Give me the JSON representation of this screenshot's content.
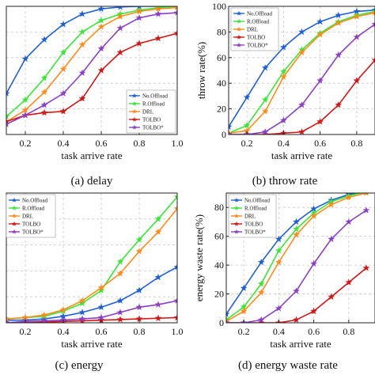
{
  "chart_data": [
    {
      "id": "a",
      "type": "line",
      "caption": "(a) delay",
      "xlabel": "task arrive rate",
      "ylabel": "",
      "xlim": [
        0.1,
        1.0
      ],
      "ylim": [
        0,
        100
      ],
      "xticks": [
        "0.2",
        "0.4",
        "0.6",
        "0.8",
        "1.0"
      ],
      "yticks": [],
      "grid": true,
      "legend_position": "bottom-right",
      "x": [
        0.1,
        0.2,
        0.3,
        0.4,
        0.5,
        0.6,
        0.7,
        0.8,
        0.9,
        1.0
      ],
      "series": [
        {
          "name": "No.Offload",
          "color": "#1f5fd6",
          "marker": "star",
          "values": [
            32,
            59,
            74,
            86,
            94,
            98,
            99.5,
            100,
            100,
            100
          ]
        },
        {
          "name": "R.Offload",
          "color": "#39e636",
          "marker": "star",
          "values": [
            14,
            27,
            44,
            64,
            80,
            89,
            94,
            97,
            99,
            100
          ]
        },
        {
          "name": "DRL",
          "color": "#ff8c1a",
          "marker": "star",
          "values": [
            10,
            19,
            33,
            51,
            70,
            84,
            92,
            96,
            98,
            99
          ]
        },
        {
          "name": "TOLBO",
          "color": "#d41515",
          "marker": "star",
          "values": [
            10,
            15,
            17,
            18,
            28,
            50,
            64,
            71,
            75,
            79
          ]
        },
        {
          "name": "TOLBO*",
          "color": "#8a3fc6",
          "marker": "star",
          "values": [
            8,
            15,
            23,
            32,
            48,
            67,
            83,
            91,
            94,
            95
          ]
        }
      ]
    },
    {
      "id": "b",
      "type": "line",
      "caption": "(b) throw rate",
      "xlabel": "task arrive rate",
      "ylabel": "throw rate(%)",
      "xlim": [
        0.1,
        0.9
      ],
      "ylim": [
        0,
        100
      ],
      "xticks": [
        "0.2",
        "0.4",
        "0.6",
        "0.8"
      ],
      "yticks": [
        "0",
        "20",
        "40",
        "60",
        "80",
        "100"
      ],
      "grid": true,
      "legend_position": "top-left",
      "x": [
        0.1,
        0.2,
        0.3,
        0.4,
        0.5,
        0.6,
        0.7,
        0.8,
        0.9
      ],
      "series": [
        {
          "name": "No.Offload",
          "color": "#1f5fd6",
          "marker": "star",
          "values": [
            6,
            29,
            52,
            68,
            80,
            88,
            93,
            96,
            97
          ]
        },
        {
          "name": "R.Offload",
          "color": "#39e636",
          "marker": "star",
          "values": [
            1,
            7,
            27,
            49,
            66,
            79,
            88,
            93,
            96
          ]
        },
        {
          "name": "DRL",
          "color": "#ff8c1a",
          "marker": "star",
          "values": [
            1,
            3,
            18,
            45,
            64,
            78,
            87,
            92,
            95
          ]
        },
        {
          "name": "TOLBO",
          "color": "#d41515",
          "marker": "star",
          "values": [
            0,
            0,
            0,
            1,
            2,
            10,
            23,
            42,
            58
          ]
        },
        {
          "name": "TOLBO*",
          "color": "#8a3fc6",
          "marker": "star",
          "values": [
            0,
            0,
            2,
            11,
            23,
            42,
            62,
            76,
            86
          ]
        }
      ]
    },
    {
      "id": "c",
      "type": "line",
      "caption": "(c) energy",
      "xlabel": "task arrive rate",
      "ylabel": "",
      "xlim": [
        0.1,
        1.0
      ],
      "ylim": [
        0,
        100
      ],
      "xticks": [
        "0.2",
        "0.4",
        "0.6",
        "0.8",
        "1.0"
      ],
      "yticks": [],
      "grid": true,
      "legend_position": "top-left",
      "x": [
        0.1,
        0.2,
        0.3,
        0.4,
        0.5,
        0.6,
        0.7,
        0.8,
        0.9,
        1.0
      ],
      "series": [
        {
          "name": "No.Offload",
          "color": "#1f5fd6",
          "marker": "star",
          "values": [
            2,
            2,
            3,
            5,
            8,
            12,
            17,
            25,
            35,
            43
          ]
        },
        {
          "name": "R.Offload",
          "color": "#39e636",
          "marker": "star",
          "values": [
            3,
            4,
            5,
            9,
            15,
            25,
            47,
            64,
            80,
            97
          ]
        },
        {
          "name": "DRL",
          "color": "#ff8c1a",
          "marker": "star",
          "values": [
            3,
            4,
            6,
            10,
            17,
            27,
            38,
            55,
            70,
            88
          ]
        },
        {
          "name": "TOLBO",
          "color": "#d41515",
          "marker": "star",
          "values": [
            0,
            0,
            0.5,
            1,
            1.5,
            2,
            2.5,
            3,
            3.5,
            4
          ]
        },
        {
          "name": "TOLBO*",
          "color": "#8a3fc6",
          "marker": "star",
          "values": [
            0,
            1,
            1.5,
            2,
            3,
            4,
            8,
            12,
            14,
            17
          ]
        }
      ]
    },
    {
      "id": "d",
      "type": "line",
      "caption": "(d) energy waste rate",
      "xlabel": "task arrive rate",
      "ylabel": "energy waste rate(%)",
      "xlim": [
        0.1,
        0.95
      ],
      "ylim": [
        0,
        90
      ],
      "xticks": [
        "0.2",
        "0.4",
        "0.6",
        "0.8"
      ],
      "yticks": [
        "0",
        "20",
        "40",
        "60",
        "80"
      ],
      "grid": true,
      "legend_position": "top-left",
      "x": [
        0.1,
        0.2,
        0.3,
        0.4,
        0.5,
        0.6,
        0.7,
        0.8,
        0.9
      ],
      "series": [
        {
          "name": "No.Offload",
          "color": "#1f5fd6",
          "marker": "star",
          "values": [
            6,
            24,
            42,
            58,
            70,
            79,
            85,
            89,
            91
          ]
        },
        {
          "name": "R.Offload",
          "color": "#39e636",
          "marker": "star",
          "values": [
            2,
            11,
            27,
            50,
            65,
            76,
            84,
            88,
            91
          ]
        },
        {
          "name": "DRL",
          "color": "#ff8c1a",
          "marker": "star",
          "values": [
            1,
            8,
            21,
            42,
            61,
            74,
            82,
            87,
            90
          ]
        },
        {
          "name": "TOLBO",
          "color": "#d41515",
          "marker": "star",
          "values": [
            0,
            0,
            0,
            0,
            2,
            8,
            18,
            28,
            38
          ]
        },
        {
          "name": "TOLBO*",
          "color": "#8a3fc6",
          "marker": "star",
          "values": [
            0,
            0,
            2,
            10,
            22,
            41,
            58,
            70,
            78
          ]
        }
      ]
    }
  ]
}
